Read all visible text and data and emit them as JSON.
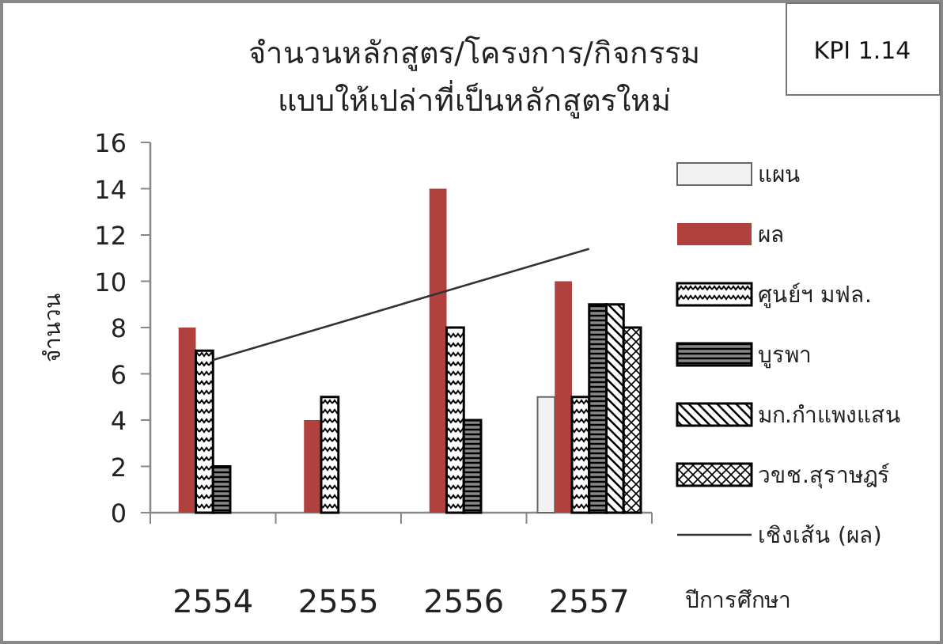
{
  "chart_data": {
    "type": "bar",
    "title": "จำนวนหลักสูตร/โครงการ/กิจกรรม แบบให้เปล่าที่เป็นหลักสูตรใหม่",
    "xlabel": "ปีการศึกษา",
    "ylabel": "จำนวน",
    "annotations": [
      "KPI 1.14"
    ],
    "categories": [
      "2554",
      "2555",
      "2556",
      "2557"
    ],
    "series": [
      {
        "name": "แผน",
        "color": "#f2f2f2",
        "values": [
          null,
          null,
          null,
          5
        ]
      },
      {
        "name": "ผล",
        "color": "#b0413e",
        "values": [
          8,
          4,
          14,
          10
        ]
      },
      {
        "name": "ศูนย์ฯ มฟล.",
        "color": "#000000",
        "values": [
          7,
          5,
          8,
          5
        ]
      },
      {
        "name": "บูรพา",
        "color": "#000000",
        "values": [
          2,
          null,
          4,
          9
        ]
      },
      {
        "name": "มก.กำแพงแสน",
        "color": "#000000",
        "values": [
          null,
          null,
          null,
          9
        ]
      },
      {
        "name": "วขช.สุราษฎร์",
        "color": "#000000",
        "values": [
          null,
          null,
          null,
          8
        ]
      },
      {
        "name": "เชิงเส้น (ผล)",
        "type": "line",
        "color": "#333333",
        "values": [
          6.6,
          8.2,
          9.8,
          11.4
        ]
      }
    ],
    "ylim": [
      0,
      16
    ],
    "yticks": [
      0,
      2,
      4,
      6,
      8,
      10,
      12,
      14,
      16
    ],
    "grid": false,
    "legend": "right"
  }
}
